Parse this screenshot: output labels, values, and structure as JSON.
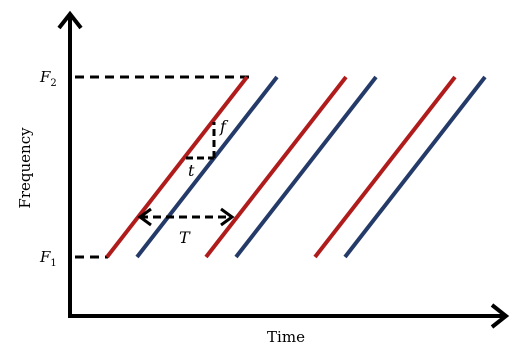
{
  "diagram": {
    "xlabel": "Time",
    "ylabel": "Frequency",
    "f2_label": "F",
    "f2_sub": "2",
    "f1_label": "F",
    "f1_sub": "1",
    "delta_f_label": "f",
    "delta_t_label": "t",
    "period_label": "T",
    "colors": {
      "red_chirp": "#b01c1c",
      "blue_chirp": "#243a68",
      "axis": "#000000",
      "guide": "#000000"
    }
  }
}
